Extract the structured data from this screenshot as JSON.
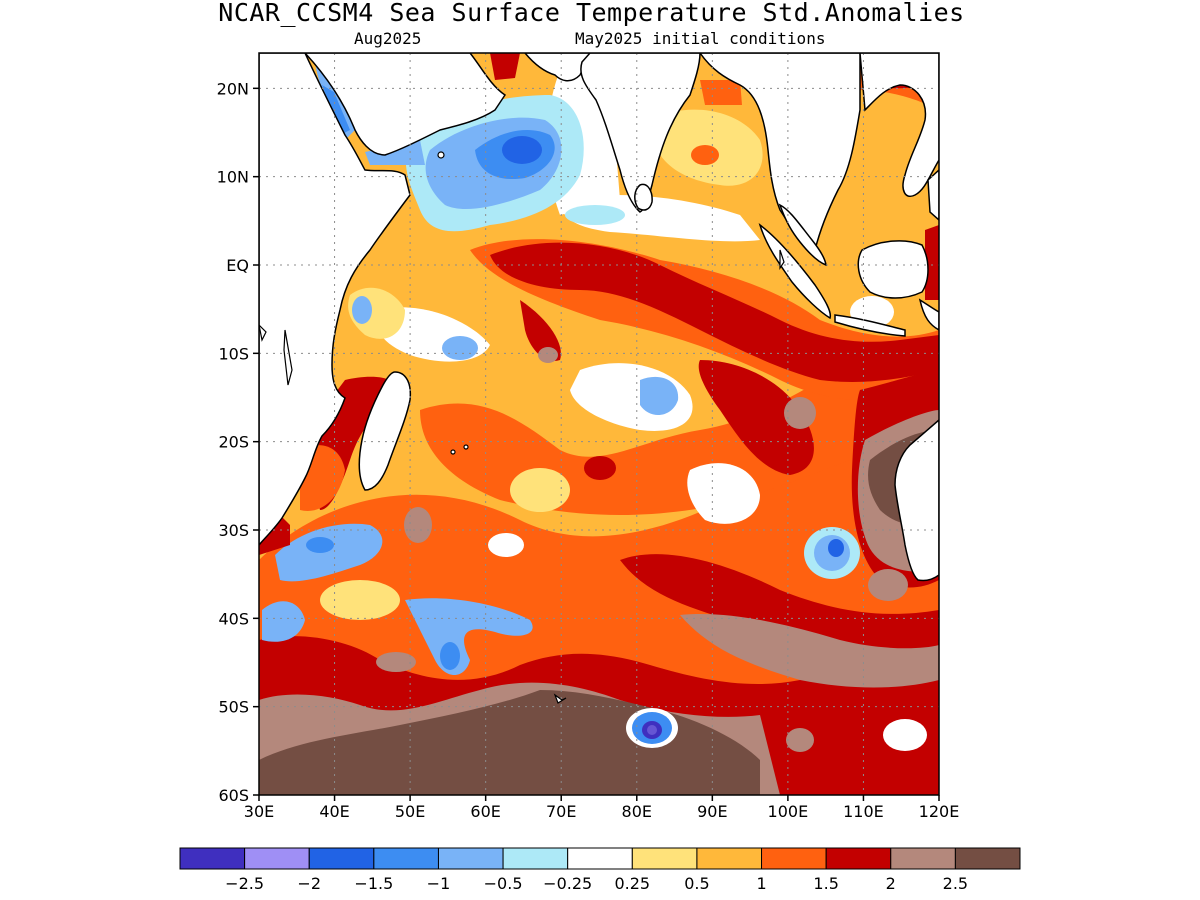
{
  "header": {
    "title": "NCAR_CCSM4 Sea Surface Temperature Std.Anomalies",
    "valid_month": "Aug2025",
    "init_conditions": "May2025 initial conditions"
  },
  "map": {
    "lon_range": [
      30,
      120
    ],
    "lat_range": [
      -60,
      24
    ],
    "lon_ticks": [
      {
        "value": 30,
        "label": "30E"
      },
      {
        "value": 40,
        "label": "40E"
      },
      {
        "value": 50,
        "label": "50E"
      },
      {
        "value": 60,
        "label": "60E"
      },
      {
        "value": 70,
        "label": "70E"
      },
      {
        "value": 80,
        "label": "80E"
      },
      {
        "value": 90,
        "label": "90E"
      },
      {
        "value": 100,
        "label": "100E"
      },
      {
        "value": 110,
        "label": "110E"
      },
      {
        "value": 120,
        "label": "120E"
      }
    ],
    "lat_ticks": [
      {
        "value": 20,
        "label": "20N"
      },
      {
        "value": 10,
        "label": "10N"
      },
      {
        "value": 0,
        "label": "EQ"
      },
      {
        "value": -10,
        "label": "10S"
      },
      {
        "value": -20,
        "label": "20S"
      },
      {
        "value": -30,
        "label": "30S"
      },
      {
        "value": -40,
        "label": "40S"
      },
      {
        "value": -50,
        "label": "50S"
      },
      {
        "value": -60,
        "label": "60S"
      }
    ],
    "grid": "dotted"
  },
  "colorbar": {
    "colors": [
      "#3f2fbf",
      "#9f8ff5",
      "#2163e5",
      "#3d8df2",
      "#79b3f7",
      "#ade9f7",
      "#ffffff",
      "#ffe27a",
      "#ffb83a",
      "#ff6110",
      "#c30000",
      "#b4887c",
      "#744e43"
    ],
    "labels": [
      "−2.5",
      "−2",
      "−1.5",
      "−1",
      "−0.5",
      "−0.25",
      "0.25",
      "0.5",
      "1",
      "1.5",
      "2",
      "2.5"
    ]
  }
}
